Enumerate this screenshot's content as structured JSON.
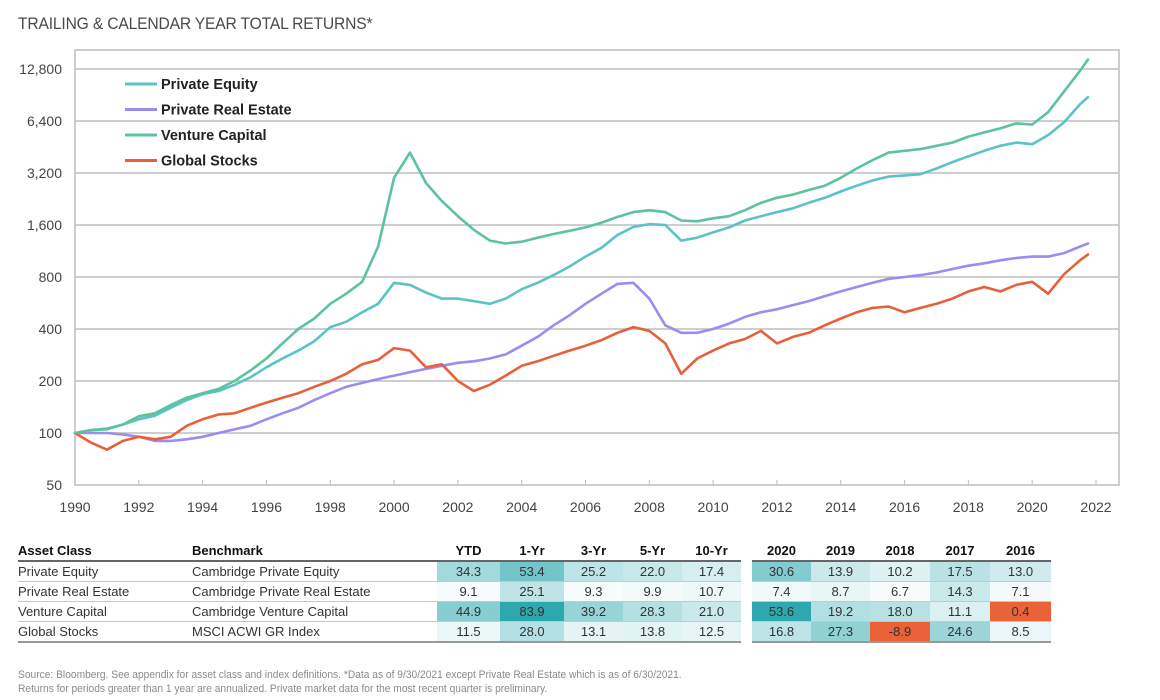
{
  "title": "TRAILING & CALENDAR YEAR TOTAL RETURNS*",
  "colors": {
    "private_equity": "#5bc3c8",
    "private_real_estate": "#9b8cf2",
    "venture_capital": "#5cc39a",
    "global_stocks": "#e8603a",
    "heat_low": "#ffffff",
    "heat_high": "#2aa6ad",
    "negative": "#ea6237"
  },
  "chart_data": {
    "type": "line",
    "title": "TRAILING & CALENDAR YEAR TOTAL RETURNS*",
    "xlabel": "",
    "ylabel": "",
    "yscale": "log2",
    "ylim": [
      50,
      12800
    ],
    "xlim": [
      1990,
      2022
    ],
    "grid": true,
    "legend_position": "top-left",
    "y_ticks": [
      50,
      100,
      200,
      400,
      800,
      1600,
      3200,
      6400,
      12800
    ],
    "y_tick_labels": [
      "50",
      "100",
      "200",
      "400",
      "800",
      "1,600",
      "3,200",
      "6,400",
      "12,800"
    ],
    "x_ticks": [
      1990,
      1992,
      1994,
      1996,
      1998,
      2000,
      2002,
      2004,
      2006,
      2008,
      2010,
      2012,
      2014,
      2016,
      2018,
      2020,
      2022
    ],
    "x_tick_labels": [
      "1990",
      "1992",
      "1994",
      "1996",
      "1998",
      "2000",
      "2002",
      "2004",
      "2006",
      "2008",
      "2010",
      "2012",
      "2014",
      "2016",
      "2018",
      "2020",
      "2022"
    ],
    "x": [
      1990,
      1990.5,
      1991,
      1991.5,
      1992,
      1992.5,
      1993,
      1993.5,
      1994,
      1994.5,
      1995,
      1995.5,
      1996,
      1996.5,
      1997,
      1997.5,
      1998,
      1998.5,
      1999,
      1999.5,
      2000,
      2000.5,
      2001,
      2001.5,
      2002,
      2002.5,
      2003,
      2003.5,
      2004,
      2004.5,
      2005,
      2005.5,
      2006,
      2006.5,
      2007,
      2007.5,
      2008,
      2008.5,
      2009,
      2009.5,
      2010,
      2010.5,
      2011,
      2011.5,
      2012,
      2012.5,
      2013,
      2013.5,
      2014,
      2014.5,
      2015,
      2015.5,
      2016,
      2016.5,
      2017,
      2017.5,
      2018,
      2018.5,
      2019,
      2019.5,
      2020,
      2020.5,
      2021,
      2021.5,
      2021.75
    ],
    "series": [
      {
        "name": "Private Equity",
        "key": "private_equity",
        "values": [
          100,
          104,
          106,
          112,
          120,
          126,
          140,
          155,
          168,
          175,
          190,
          210,
          240,
          270,
          300,
          340,
          410,
          440,
          500,
          560,
          740,
          720,
          650,
          600,
          600,
          580,
          560,
          600,
          680,
          740,
          820,
          920,
          1050,
          1180,
          1400,
          1560,
          1620,
          1600,
          1300,
          1350,
          1450,
          1550,
          1700,
          1800,
          1900,
          2000,
          2150,
          2300,
          2500,
          2700,
          2900,
          3050,
          3100,
          3150,
          3400,
          3700,
          4000,
          4300,
          4600,
          4800,
          4700,
          5300,
          6300,
          8000,
          8800
        ]
      },
      {
        "name": "Private Real Estate",
        "key": "private_real_estate",
        "values": [
          100,
          100,
          100,
          98,
          95,
          90,
          90,
          92,
          95,
          100,
          105,
          110,
          120,
          130,
          140,
          155,
          170,
          185,
          195,
          205,
          215,
          225,
          235,
          245,
          255,
          260,
          270,
          285,
          320,
          360,
          420,
          480,
          560,
          640,
          730,
          740,
          600,
          420,
          380,
          380,
          400,
          430,
          470,
          500,
          520,
          550,
          580,
          620,
          660,
          700,
          740,
          780,
          800,
          820,
          850,
          890,
          930,
          960,
          1000,
          1030,
          1050,
          1050,
          1100,
          1200,
          1250
        ]
      },
      {
        "name": "Venture Capital",
        "key": "venture_capital",
        "values": [
          100,
          104,
          105,
          112,
          125,
          130,
          145,
          160,
          170,
          180,
          200,
          230,
          270,
          330,
          400,
          460,
          560,
          640,
          750,
          1200,
          3000,
          4200,
          2800,
          2200,
          1800,
          1500,
          1300,
          1250,
          1280,
          1350,
          1420,
          1480,
          1550,
          1650,
          1780,
          1900,
          1950,
          1900,
          1700,
          1680,
          1750,
          1800,
          1950,
          2150,
          2300,
          2400,
          2550,
          2700,
          3000,
          3400,
          3800,
          4200,
          4300,
          4400,
          4600,
          4800,
          5200,
          5500,
          5800,
          6200,
          6100,
          7200,
          9500,
          12500,
          14500
        ]
      },
      {
        "name": "Global Stocks",
        "key": "global_stocks",
        "values": [
          100,
          88,
          80,
          90,
          95,
          92,
          95,
          110,
          120,
          128,
          130,
          140,
          150,
          160,
          170,
          185,
          200,
          220,
          250,
          265,
          310,
          300,
          240,
          250,
          200,
          175,
          190,
          215,
          245,
          260,
          280,
          300,
          320,
          345,
          380,
          410,
          390,
          330,
          220,
          270,
          300,
          330,
          350,
          390,
          330,
          360,
          380,
          420,
          460,
          500,
          530,
          540,
          500,
          530,
          560,
          600,
          660,
          700,
          660,
          720,
          750,
          640,
          830,
          1000,
          1080
        ]
      }
    ],
    "table": {
      "columns_trailing": [
        "YTD",
        "1-Yr",
        "3-Yr",
        "5-Yr",
        "10-Yr"
      ],
      "columns_calendar": [
        "2020",
        "2019",
        "2018",
        "2017",
        "2016"
      ]
    }
  },
  "legend": [
    {
      "label": "Private Equity",
      "key": "private_equity"
    },
    {
      "label": "Private Real Estate",
      "key": "private_real_estate"
    },
    {
      "label": "Venture Capital",
      "key": "venture_capital"
    },
    {
      "label": "Global Stocks",
      "key": "global_stocks"
    }
  ],
  "table": {
    "headers": {
      "asset_class": "Asset Class",
      "benchmark": "Benchmark",
      "trailing": [
        "YTD",
        "1-Yr",
        "3-Yr",
        "5-Yr",
        "10-Yr"
      ],
      "calendar": [
        "2020",
        "2019",
        "2018",
        "2017",
        "2016"
      ]
    },
    "rows": [
      {
        "asset_class": "Private Equity",
        "benchmark": "Cambridge Private Equity",
        "trailing": [
          "34.3",
          "53.4",
          "25.2",
          "22.0",
          "17.4"
        ],
        "calendar": [
          "30.6",
          "13.9",
          "10.2",
          "17.5",
          "13.0"
        ]
      },
      {
        "asset_class": "Private Real Estate",
        "benchmark": "Cambridge Private Real Estate",
        "trailing": [
          "9.1",
          "25.1",
          "9.3",
          "9.9",
          "10.7"
        ],
        "calendar": [
          "7.4",
          "8.7",
          "6.7",
          "14.3",
          "7.1"
        ]
      },
      {
        "asset_class": "Venture Capital",
        "benchmark": "Cambridge Venture Capital",
        "trailing": [
          "44.9",
          "83.9",
          "39.2",
          "28.3",
          "21.0"
        ],
        "calendar": [
          "53.6",
          "19.2",
          "18.0",
          "11.1",
          "0.4"
        ]
      },
      {
        "asset_class": "Global Stocks",
        "benchmark": "MSCI ACWI GR Index",
        "trailing": [
          "11.5",
          "28.0",
          "13.1",
          "13.8",
          "12.5"
        ],
        "calendar": [
          "16.8",
          "27.3",
          "-8.9",
          "24.6",
          "8.5"
        ]
      }
    ]
  },
  "footer": {
    "line1": "Source: Bloomberg. See appendix for asset class and index definitions. *Data as of 9/30/2021 except Private Real Estate which is as of 6/30/2021.",
    "line2": "Returns for periods greater than 1 year are annualized. Private market data for the most recent quarter is preliminary."
  }
}
